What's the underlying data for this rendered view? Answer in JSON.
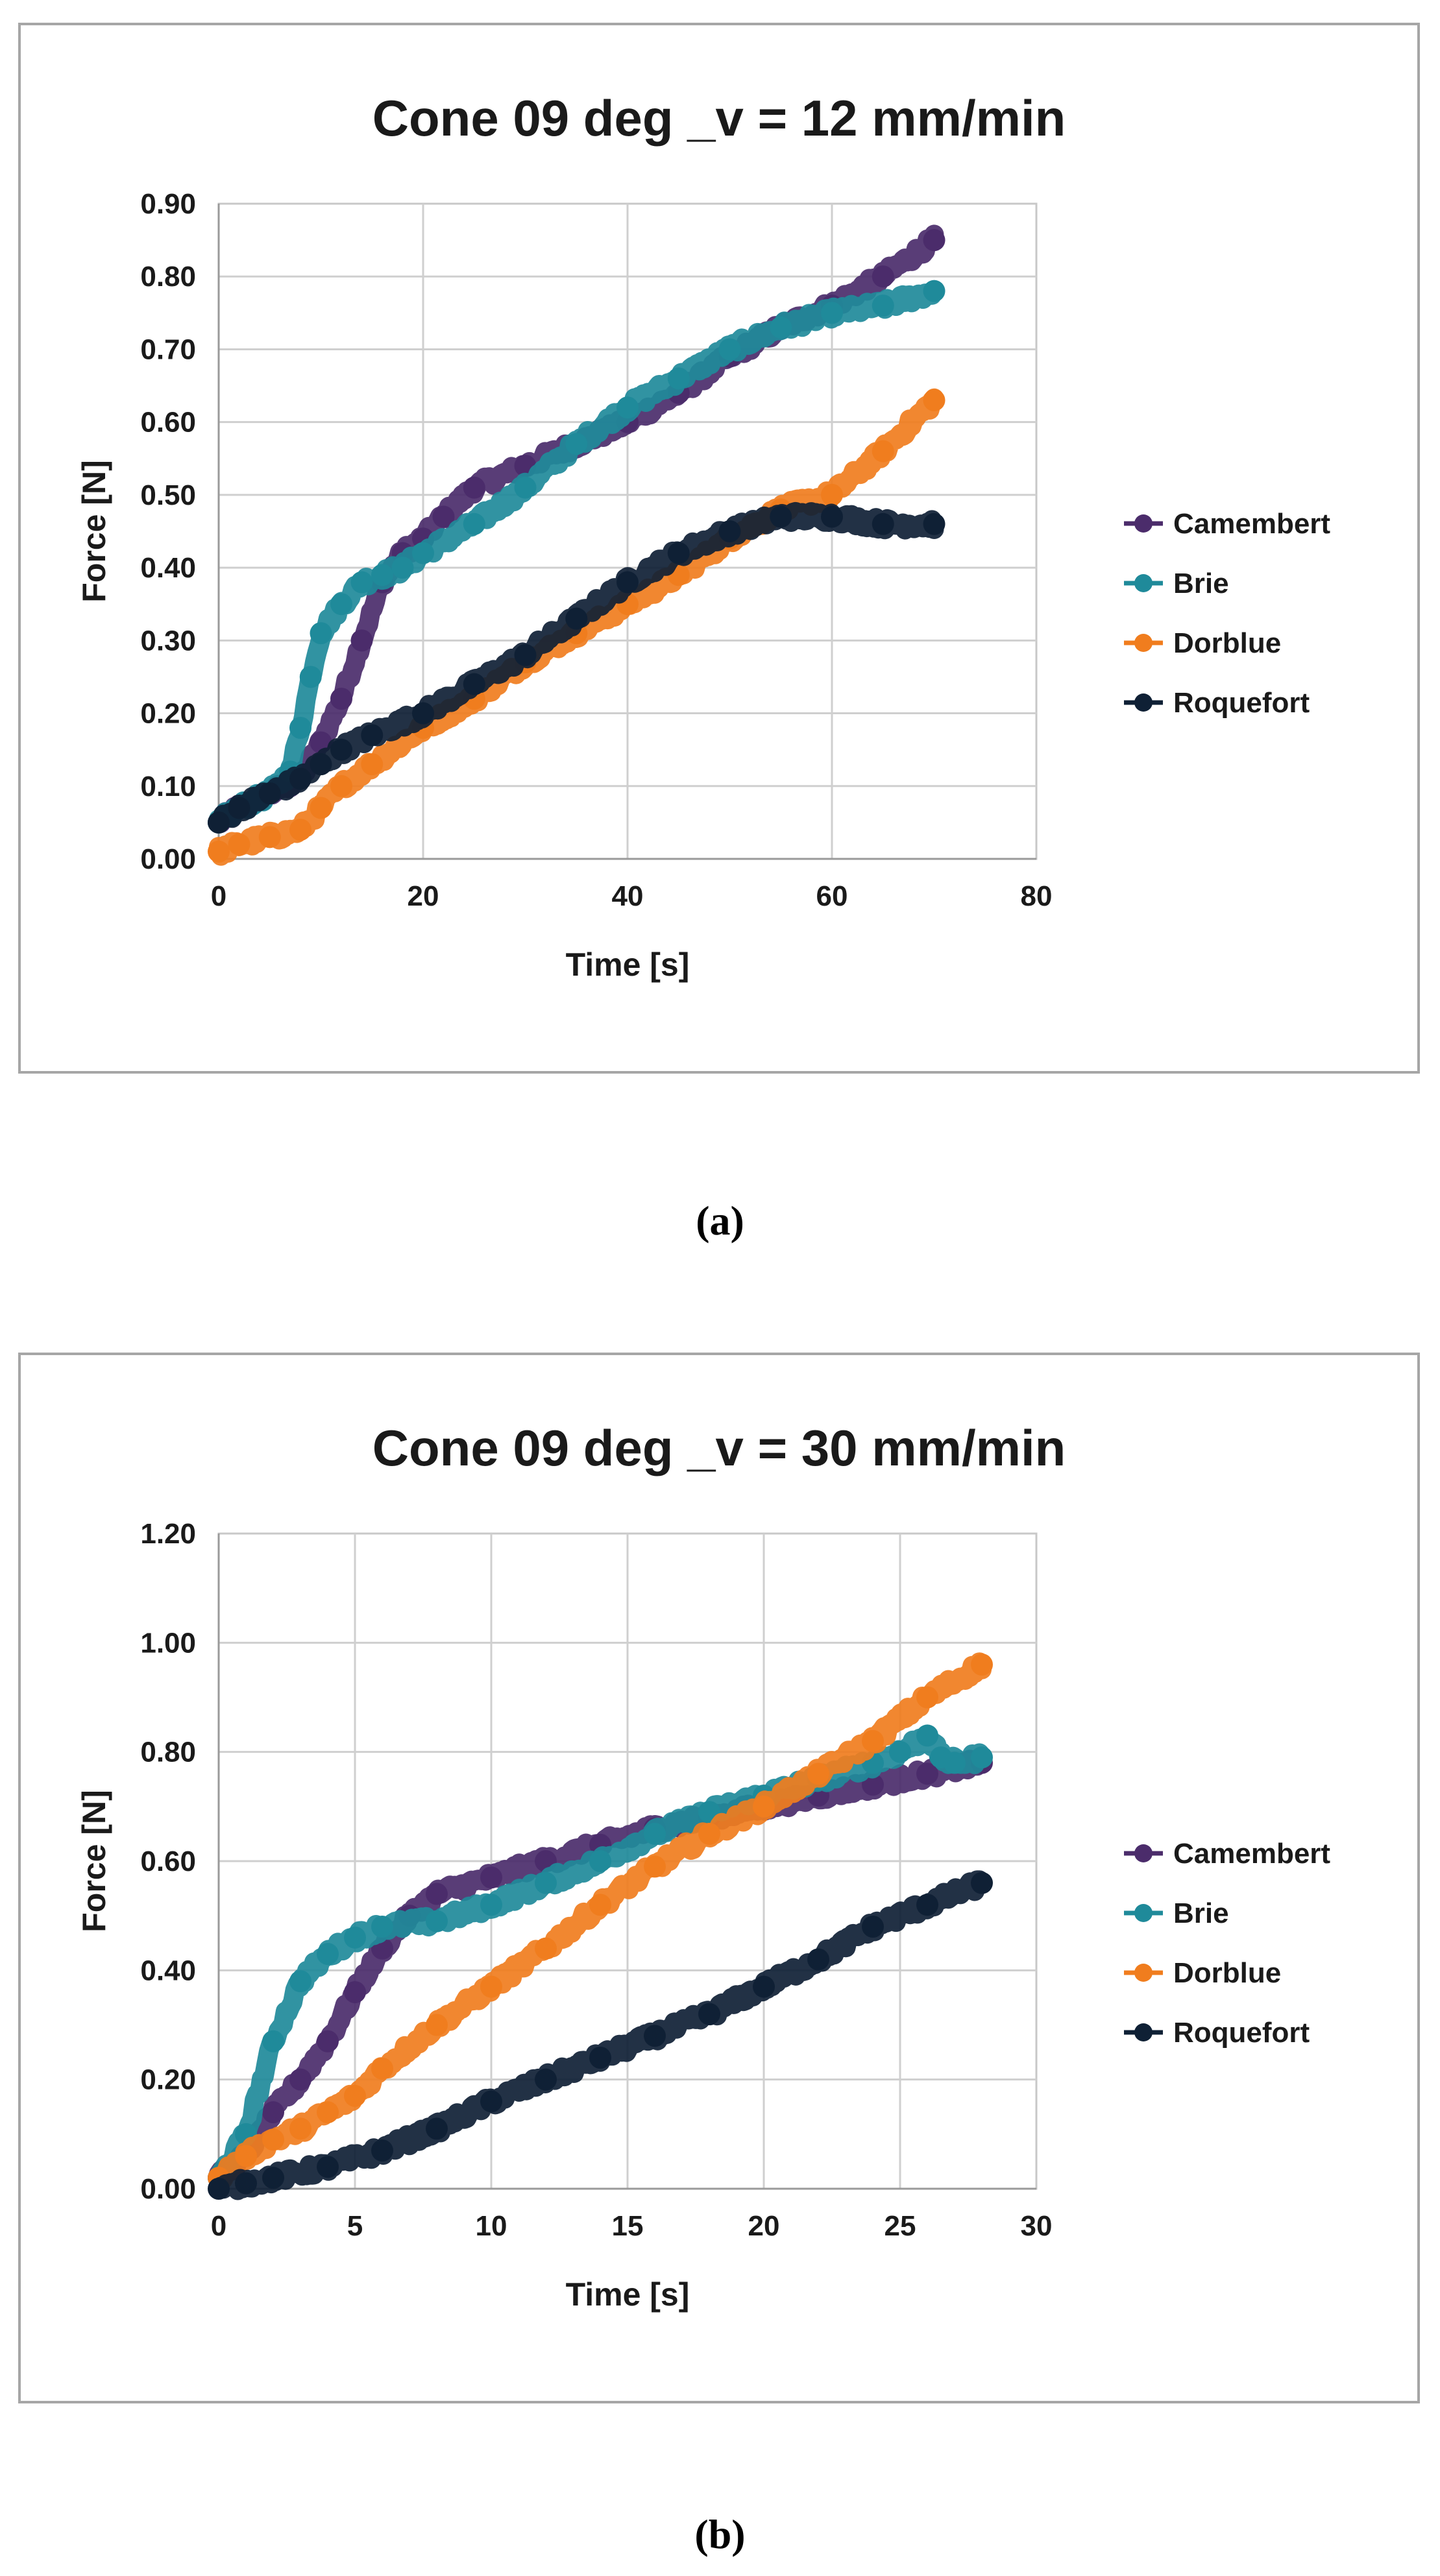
{
  "chart_data": [
    {
      "type": "scatter",
      "title": "Cone 09 deg _v = 12 mm/min",
      "xlabel": "Time [s]",
      "ylabel": "Force [N]",
      "xlim": [
        0,
        80
      ],
      "ylim": [
        0,
        0.9
      ],
      "xticks": [
        "0",
        "20",
        "40",
        "60",
        "80"
      ],
      "yticks": [
        "0.00",
        "0.10",
        "0.20",
        "0.30",
        "0.40",
        "0.50",
        "0.60",
        "0.70",
        "0.80",
        "0.90"
      ],
      "grid": true,
      "legend": "right",
      "caption": "(a)",
      "series": [
        {
          "name": "Camembert",
          "color": "#4b2c6b",
          "x": [
            0,
            2,
            5,
            8,
            10,
            12,
            14,
            16,
            18,
            20,
            22,
            25,
            30,
            35,
            40,
            45,
            50,
            55,
            60,
            65,
            70
          ],
          "y": [
            0.05,
            0.07,
            0.09,
            0.11,
            0.16,
            0.22,
            0.3,
            0.38,
            0.42,
            0.44,
            0.47,
            0.51,
            0.54,
            0.57,
            0.6,
            0.64,
            0.69,
            0.73,
            0.76,
            0.8,
            0.85
          ]
        },
        {
          "name": "Brie",
          "color": "#1f8a9a",
          "x": [
            0,
            2,
            5,
            7,
            8,
            9,
            10,
            12,
            14,
            16,
            18,
            20,
            25,
            30,
            35,
            40,
            45,
            50,
            55,
            60,
            65,
            70
          ],
          "y": [
            0.05,
            0.07,
            0.09,
            0.12,
            0.18,
            0.25,
            0.31,
            0.35,
            0.38,
            0.39,
            0.4,
            0.42,
            0.46,
            0.51,
            0.57,
            0.62,
            0.66,
            0.7,
            0.73,
            0.75,
            0.76,
            0.78
          ]
        },
        {
          "name": "Dorblue",
          "color": "#f07d1e",
          "x": [
            0,
            2,
            5,
            8,
            10,
            12,
            15,
            20,
            25,
            30,
            35,
            40,
            45,
            50,
            55,
            60,
            65,
            70
          ],
          "y": [
            0.01,
            0.02,
            0.03,
            0.04,
            0.07,
            0.1,
            0.13,
            0.18,
            0.22,
            0.27,
            0.31,
            0.35,
            0.39,
            0.44,
            0.48,
            0.5,
            0.56,
            0.63
          ]
        },
        {
          "name": "Roquefort",
          "color": "#0f2035",
          "x": [
            0,
            2,
            5,
            8,
            10,
            12,
            15,
            20,
            25,
            30,
            35,
            40,
            45,
            50,
            55,
            60,
            65,
            70
          ],
          "y": [
            0.05,
            0.07,
            0.09,
            0.11,
            0.13,
            0.15,
            0.17,
            0.2,
            0.24,
            0.28,
            0.33,
            0.38,
            0.42,
            0.45,
            0.47,
            0.47,
            0.46,
            0.46
          ]
        }
      ]
    },
    {
      "type": "scatter",
      "title": "Cone 09 deg _v = 30 mm/min",
      "xlabel": "Time [s]",
      "ylabel": "Force [N]",
      "xlim": [
        0,
        30
      ],
      "ylim": [
        0,
        1.2
      ],
      "xticks": [
        "0",
        "5",
        "10",
        "15",
        "20",
        "25",
        "30"
      ],
      "yticks": [
        "0.00",
        "0.20",
        "0.40",
        "0.60",
        "0.80",
        "1.00",
        "1.20"
      ],
      "grid": true,
      "legend": "right",
      "caption": "(b)",
      "series": [
        {
          "name": "Camembert",
          "color": "#4b2c6b",
          "x": [
            0,
            1,
            2,
            3,
            4,
            5,
            6,
            7,
            8,
            10,
            12,
            14,
            16,
            18,
            20,
            22,
            24,
            26,
            28
          ],
          "y": [
            0.02,
            0.06,
            0.14,
            0.2,
            0.27,
            0.36,
            0.44,
            0.5,
            0.54,
            0.57,
            0.6,
            0.63,
            0.66,
            0.68,
            0.7,
            0.72,
            0.74,
            0.76,
            0.78
          ]
        },
        {
          "name": "Brie",
          "color": "#1f8a9a",
          "x": [
            0,
            1,
            2,
            3,
            4,
            5,
            6,
            8,
            10,
            12,
            14,
            16,
            18,
            20,
            22,
            24,
            25,
            26,
            26.5,
            27,
            28
          ],
          "y": [
            0.02,
            0.1,
            0.27,
            0.38,
            0.43,
            0.46,
            0.48,
            0.49,
            0.52,
            0.56,
            0.6,
            0.65,
            0.69,
            0.72,
            0.75,
            0.78,
            0.8,
            0.83,
            0.79,
            0.78,
            0.79
          ]
        },
        {
          "name": "Dorblue",
          "color": "#f07d1e",
          "x": [
            0,
            1,
            2,
            3,
            4,
            5,
            6,
            8,
            10,
            12,
            14,
            16,
            18,
            20,
            22,
            24,
            26,
            28
          ],
          "y": [
            0.02,
            0.06,
            0.09,
            0.11,
            0.14,
            0.17,
            0.22,
            0.3,
            0.37,
            0.44,
            0.52,
            0.59,
            0.65,
            0.7,
            0.76,
            0.82,
            0.9,
            0.96
          ]
        },
        {
          "name": "Roquefort",
          "color": "#0f2035",
          "x": [
            0,
            1,
            2,
            4,
            6,
            8,
            10,
            12,
            14,
            16,
            18,
            20,
            22,
            24,
            26,
            28
          ],
          "y": [
            0.0,
            0.01,
            0.02,
            0.04,
            0.07,
            0.11,
            0.16,
            0.2,
            0.24,
            0.28,
            0.32,
            0.37,
            0.42,
            0.48,
            0.52,
            0.56
          ]
        }
      ]
    }
  ]
}
